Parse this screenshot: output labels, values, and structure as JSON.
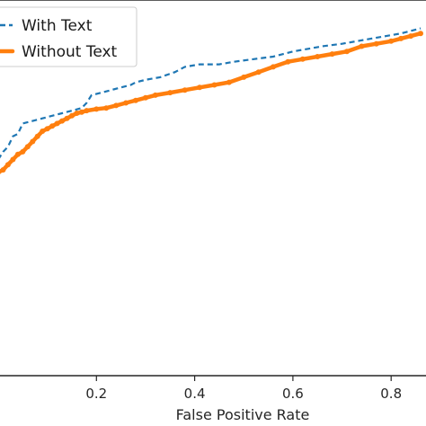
{
  "chart_data": {
    "type": "line",
    "xlabel": "False Positive Rate",
    "ylabel": "",
    "xlim": [
      0.0,
      0.86
    ],
    "ylim": [
      0.3,
      1.03
    ],
    "xticks": [
      0.2,
      0.4,
      0.6,
      0.8
    ],
    "xtick_labels": [
      "0.2",
      "0.4",
      "0.6",
      "0.8"
    ],
    "grid": false,
    "legend_position": "top-left",
    "series": [
      {
        "name": "With Text",
        "color": "#1f77b4",
        "style": "dashed",
        "x": [
          0.0,
          0.01,
          0.02,
          0.03,
          0.04,
          0.05,
          0.07,
          0.09,
          0.11,
          0.13,
          0.15,
          0.17,
          0.18,
          0.19,
          0.21,
          0.23,
          0.25,
          0.27,
          0.28,
          0.3,
          0.33,
          0.36,
          0.38,
          0.41,
          0.45,
          0.48,
          0.52,
          0.56,
          0.6,
          0.63,
          0.66,
          0.7,
          0.73,
          0.76,
          0.79,
          0.82,
          0.84,
          0.86
        ],
        "y": [
          0.72,
          0.735,
          0.745,
          0.765,
          0.77,
          0.79,
          0.795,
          0.8,
          0.805,
          0.81,
          0.815,
          0.82,
          0.83,
          0.845,
          0.85,
          0.855,
          0.86,
          0.865,
          0.87,
          0.875,
          0.88,
          0.89,
          0.9,
          0.905,
          0.905,
          0.91,
          0.915,
          0.92,
          0.93,
          0.935,
          0.94,
          0.945,
          0.95,
          0.955,
          0.96,
          0.965,
          0.97,
          0.975
        ]
      },
      {
        "name": "Without Text",
        "color": "#ff7f0e",
        "style": "solid-marked",
        "x": [
          0.0,
          0.01,
          0.02,
          0.03,
          0.04,
          0.05,
          0.06,
          0.07,
          0.08,
          0.09,
          0.1,
          0.11,
          0.12,
          0.13,
          0.14,
          0.15,
          0.16,
          0.17,
          0.18,
          0.2,
          0.22,
          0.24,
          0.26,
          0.28,
          0.3,
          0.32,
          0.35,
          0.38,
          0.41,
          0.44,
          0.47,
          0.5,
          0.53,
          0.56,
          0.59,
          0.62,
          0.65,
          0.68,
          0.71,
          0.74,
          0.77,
          0.8,
          0.82,
          0.84,
          0.86
        ],
        "y": [
          0.695,
          0.7,
          0.71,
          0.72,
          0.73,
          0.735,
          0.745,
          0.755,
          0.765,
          0.775,
          0.78,
          0.785,
          0.79,
          0.795,
          0.8,
          0.805,
          0.81,
          0.812,
          0.815,
          0.818,
          0.82,
          0.825,
          0.83,
          0.835,
          0.84,
          0.845,
          0.85,
          0.855,
          0.86,
          0.865,
          0.87,
          0.88,
          0.89,
          0.9,
          0.91,
          0.915,
          0.92,
          0.925,
          0.93,
          0.94,
          0.945,
          0.95,
          0.955,
          0.96,
          0.965
        ]
      }
    ]
  }
}
